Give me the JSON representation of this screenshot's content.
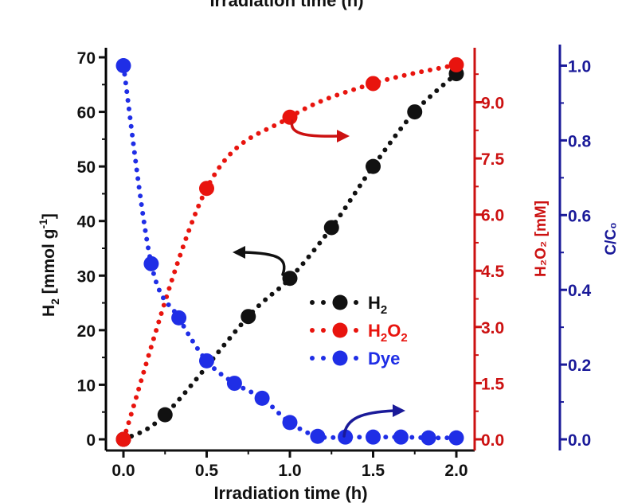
{
  "chart_data": {
    "type": "scatter",
    "title": "Irradiation time (h)",
    "xlabel": "Irradiation time (h)",
    "xlim": [
      0,
      2
    ],
    "x_ticks": [
      "0.0",
      "0.5",
      "1.0",
      "1.5",
      "2.0"
    ],
    "y_axes": [
      {
        "id": "h2",
        "label": "H2 [mmol g-1]",
        "label_main": "H",
        "label_sub": "2",
        "label_rest": " [mmol g",
        "label_sup": "-1",
        "label_end": "]",
        "ylim": [
          0,
          70
        ],
        "ticks": [
          "0",
          "10",
          "20",
          "30",
          "40",
          "50",
          "60",
          "70"
        ],
        "color": "#000000"
      },
      {
        "id": "h2o2",
        "label": "H₂O₂ [mM]",
        "ylim": [
          0,
          10.2
        ],
        "ticks": [
          "0.0",
          "1.5",
          "3.0",
          "4.5",
          "6.0",
          "7.5",
          "9.0"
        ],
        "color": "#cc1111"
      },
      {
        "id": "dye",
        "label": "C/C₀",
        "ylim": [
          0,
          1.05
        ],
        "ticks": [
          "0.0",
          "0.2",
          "0.4",
          "0.6",
          "0.8",
          "1.0"
        ],
        "color": "#1a1a99"
      }
    ],
    "series": [
      {
        "name": "H2",
        "legend_main": "H",
        "legend_sub": "2",
        "axis": "h2",
        "color": "#111111",
        "x": [
          0,
          0.25,
          0.75,
          1.0,
          1.25,
          1.5,
          1.75,
          2.0
        ],
        "y": [
          0,
          4.5,
          22.5,
          29.5,
          38.8,
          50,
          60,
          67
        ]
      },
      {
        "name": "H2O2",
        "legend_main": "H",
        "legend_sub": "2",
        "legend_main2": "O",
        "legend_sub2": "2",
        "axis": "h2o2",
        "color": "#e8140e",
        "x": [
          0,
          0.5,
          1.0,
          1.5,
          2.0
        ],
        "y": [
          0,
          6.7,
          8.6,
          9.5,
          10.0
        ]
      },
      {
        "name": "Dye",
        "legend_main": "Dye",
        "axis": "dye",
        "color": "#1f2ee6",
        "x": [
          0,
          0.167,
          0.333,
          0.5,
          0.667,
          0.833,
          1.0,
          1.167,
          1.333,
          1.5,
          1.667,
          1.833,
          2.0
        ],
        "y": [
          1.0,
          0.47,
          0.325,
          0.21,
          0.15,
          0.11,
          0.045,
          0.008,
          0.006,
          0.006,
          0.006,
          0.004,
          0.004
        ]
      }
    ],
    "legend_position": "center-right",
    "grid": false
  }
}
